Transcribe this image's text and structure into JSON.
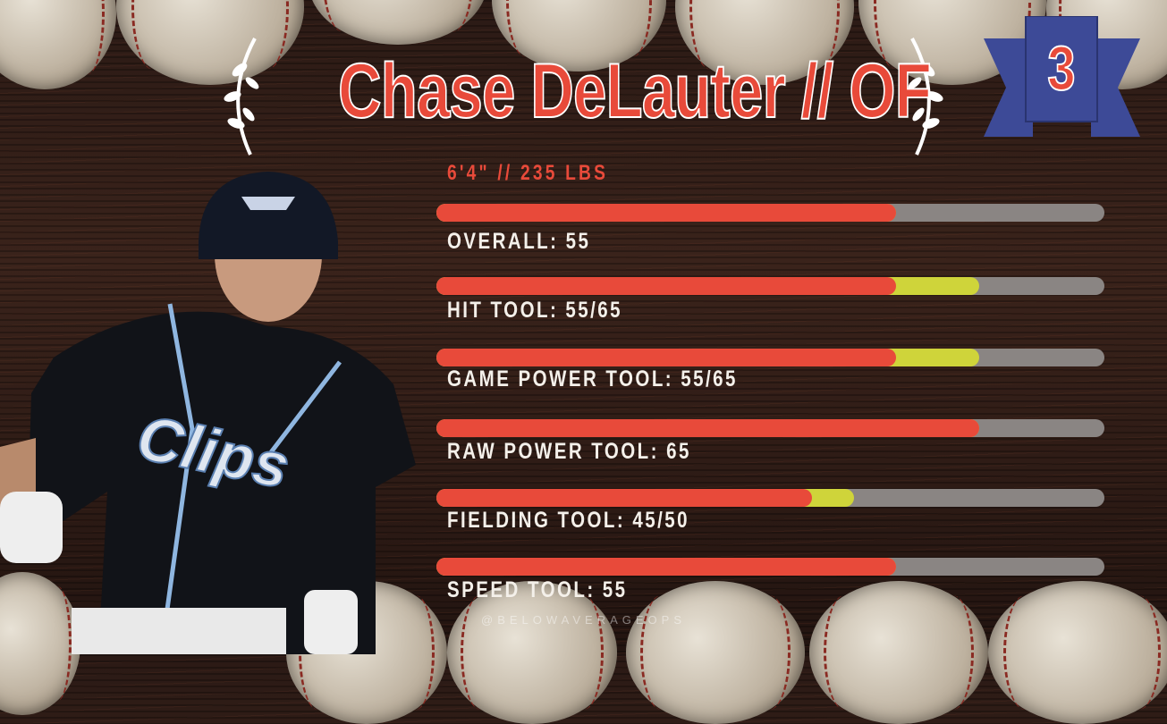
{
  "header": {
    "title": "Chase DeLauter // OF",
    "measurements": "6'4\" // 235 LBS",
    "rank": "3"
  },
  "colors": {
    "accent": "#e84a3a",
    "potential": "#cfd43a",
    "track": "#8a8583",
    "badge": "#3d4a97"
  },
  "chart_data": {
    "type": "bar",
    "scale_max": 80,
    "tools": [
      {
        "label": "OVERALL: 55",
        "current": 55,
        "potential": 55
      },
      {
        "label": "HIT TOOL: 55/65",
        "current": 55,
        "potential": 65
      },
      {
        "label": "GAME POWER TOOL: 55/65",
        "current": 55,
        "potential": 65
      },
      {
        "label": "RAW POWER TOOL: 65",
        "current": 65,
        "potential": 65
      },
      {
        "label": "FIELDING TOOL: 45/50",
        "current": 45,
        "potential": 50
      },
      {
        "label": "SPEED TOOL: 55",
        "current": 55,
        "potential": 55
      }
    ]
  },
  "footer": {
    "handle": "@BELOWAVERAGEOPS"
  }
}
